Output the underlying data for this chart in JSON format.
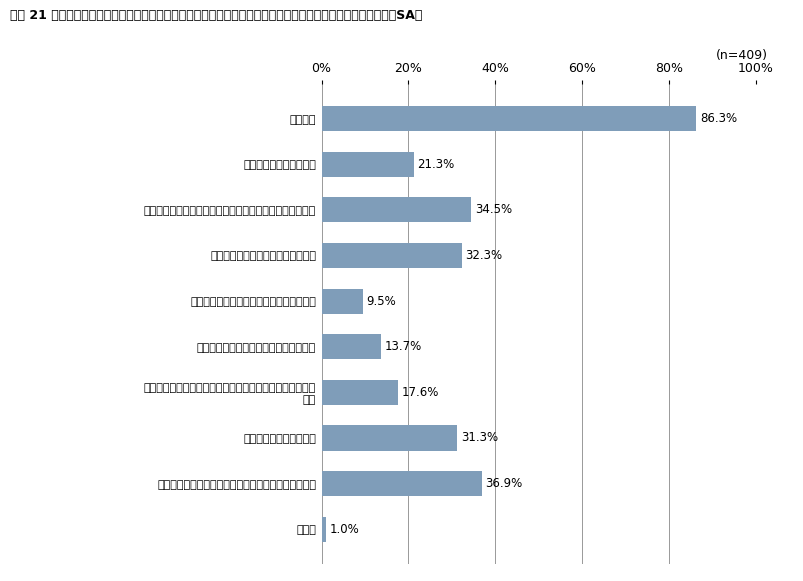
{
  "title": "図表 21 販売先（発注元企業）との契約締結時の情報セキュリティに関する条項・取引上の義務・要請の内容（SA）",
  "n_label": "(n=409)",
  "categories": [
    "秘密保持",
    "証跡の提示、監査協力等",
    "情報セキュリティに関する契約内容に違反した場合の措置",
    "インシデントが発生した場合の対応",
    "可用性（稼働率の水準、目標復旧時間等）",
    "認証（ＩＳＭＳ等）取得の依頼／要件化",
    "新たな脅威（ぜい弱性等）が顕在化した場合の情報共有・\n対応",
    "再委託の禁止または制限",
    "契約終了後の情報資産の扱い（返却、消去、廃棄等）",
    "その他"
  ],
  "values": [
    86.3,
    21.3,
    34.5,
    32.3,
    9.5,
    13.7,
    17.6,
    31.3,
    36.9,
    1.0
  ],
  "bar_color": "#7f9db9",
  "background_color": "#ffffff",
  "xlim": [
    0,
    100
  ],
  "xticks": [
    0,
    20,
    40,
    60,
    80,
    100
  ],
  "xticklabels": [
    "0%",
    "20%",
    "40%",
    "60%",
    "80%",
    "100%"
  ]
}
